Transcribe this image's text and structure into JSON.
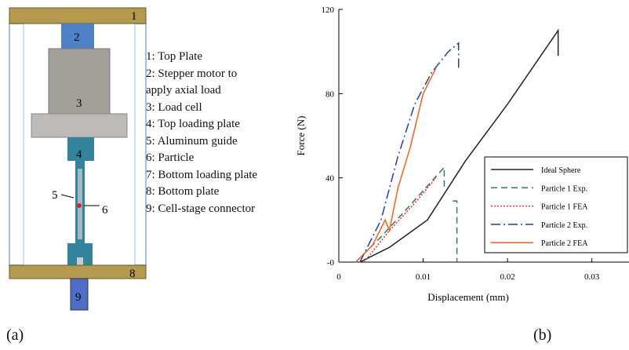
{
  "diagram": {
    "part_numbers": [
      "1",
      "2",
      "3",
      "4",
      "5",
      "6",
      "8",
      "9"
    ],
    "items": [
      "1: Top Plate",
      "2: Stepper motor to\napply axial load",
      "3: Load cell",
      "4: Top loading plate",
      "5: Aluminum guide",
      "6: Particle",
      "7: Bottom loading plate",
      "8: Bottom plate",
      "9: Cell-stage connector"
    ],
    "panel_label": "(a)"
  },
  "chart_data": {
    "type": "line",
    "panel_label": "(b)",
    "x_label": "Displacement (mm)",
    "y_label": "Force (N)",
    "xlim": [
      0,
      0.0344
    ],
    "ylim": [
      0,
      120
    ],
    "xticks": [
      0,
      0.01,
      0.02,
      0.03
    ],
    "yticks": [
      {
        "value": 0,
        "label": "-0"
      },
      40,
      80,
      120
    ],
    "legend_position": "lower right",
    "series": [
      {
        "name": "Ideal Sphere",
        "color": "#222222",
        "dash": "solid",
        "x": [
          0.0025,
          0.006,
          0.0105,
          0.015,
          0.02,
          0.026,
          0.026
        ],
        "values": [
          0,
          7,
          20,
          48,
          75,
          110,
          98
        ]
      },
      {
        "name": "Particle 1 Exp.",
        "color": "#2e7d4f",
        "dash": "dashed",
        "x": [
          0.002,
          0.005,
          0.008,
          0.0125,
          0.0125,
          null,
          0.0135,
          0.014,
          0.014
        ],
        "values": [
          0,
          12,
          25,
          45,
          35,
          null,
          29,
          29,
          0
        ]
      },
      {
        "name": "Particle 1 FEA",
        "color": "#e03030",
        "dash": "dotted",
        "x": [
          0.003,
          0.006,
          0.009,
          0.0115
        ],
        "values": [
          0,
          15,
          28,
          40
        ]
      },
      {
        "name": "Particle 2 Exp.",
        "color": "#2040a0",
        "dash": "dashdot",
        "x": [
          0.0025,
          0.005,
          0.007,
          0.009,
          0.011,
          0.013,
          0.0142,
          0.0142
        ],
        "values": [
          0,
          20,
          50,
          75,
          90,
          100,
          104,
          92
        ]
      },
      {
        "name": "Particle 2 FEA",
        "color": "#f06020",
        "dash": "solid",
        "x": [
          0.002,
          0.004,
          0.0055,
          0.006,
          0.007,
          0.0085,
          0.01,
          0.0115
        ],
        "values": [
          0,
          8,
          20,
          15,
          35,
          55,
          80,
          92
        ]
      }
    ]
  }
}
